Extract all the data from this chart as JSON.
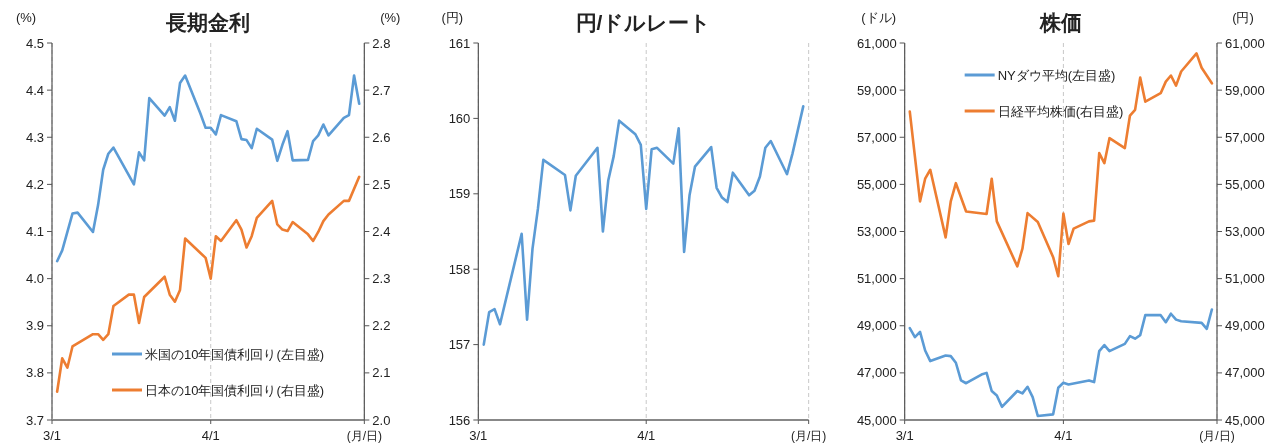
{
  "chart_data": [
    {
      "type": "line",
      "title": "長期金利",
      "xlabel": "(月/日)",
      "ylabel": "(%)",
      "y2label": "(%)",
      "grid": "x",
      "legend": "bottom",
      "xlim": [
        "--03-01",
        "--05-01"
      ],
      "xticks": [
        {
          "value": "--03-01",
          "label": "3/1"
        },
        {
          "value": "--04-01",
          "label": "4/1"
        },
        {
          "value": "--05-01",
          "label": null
        }
      ],
      "ylim": [
        3.7,
        4.5
      ],
      "yticks": [
        3.7,
        3.8,
        3.9,
        {
          "value": 4,
          "label": "4.0"
        },
        4.1,
        4.2,
        4.3,
        4.4,
        4.5
      ],
      "y2lim": [
        2.0,
        2.8
      ],
      "y2ticks": [
        {
          "value": 2,
          "label": "2.0"
        },
        2.1,
        2.2,
        2.3,
        2.4,
        2.5,
        2.6,
        2.7,
        2.8
      ],
      "series": [
        {
          "name": "米国の10年国債利回り(左目盛)",
          "color": "#5b9bd5",
          "x": [
            "--03-02",
            "--03-03",
            "--03-05",
            "--03-06",
            "--03-09",
            "--03-10",
            "--03-11",
            "--03-12",
            "--03-13",
            "--03-17",
            "--03-18",
            "--03-19",
            "--03-20",
            "--03-23",
            "--03-24",
            "--03-25",
            "--03-26",
            "--03-27",
            "--03-30",
            "--03-31",
            "--04-01",
            "--04-02",
            "--04-03",
            "--04-06",
            "--04-07",
            "--04-08",
            "--04-09",
            "--04-10",
            "--04-13",
            "--04-14",
            "--04-15",
            "--04-16",
            "--04-17",
            "--04-20",
            "--04-21",
            "--04-22",
            "--04-23",
            "--04-24",
            "--04-27",
            "--04-28",
            "--04-29",
            "--04-30"
          ],
          "values": [
            4.037,
            4.06,
            4.138,
            4.14,
            4.099,
            4.156,
            4.231,
            4.265,
            4.278,
            4.2,
            4.268,
            4.251,
            4.383,
            4.346,
            4.364,
            4.335,
            4.415,
            4.431,
            4.35,
            4.32,
            4.32,
            4.306,
            4.347,
            4.334,
            4.296,
            4.294,
            4.277,
            4.318,
            4.295,
            4.25,
            4.284,
            4.313,
            4.251,
            4.252,
            4.292,
            4.304,
            4.327,
            4.304,
            4.341,
            4.347,
            4.431,
            4.371
          ]
        },
        {
          "name": "日本の10年国債利回り(右目盛)",
          "color": "#ed7d31",
          "axis": "y2",
          "x": [
            "--03-02",
            "--03-03",
            "--03-04",
            "--03-05",
            "--03-09",
            "--03-10",
            "--03-11",
            "--03-12",
            "--03-13",
            "--03-16",
            "--03-17",
            "--03-18",
            "--03-19",
            "--03-23",
            "--03-24",
            "--03-25",
            "--03-26",
            "--03-27",
            "--03-31",
            "--04-01",
            "--04-02",
            "--04-03",
            "--04-06",
            "--04-07",
            "--04-08",
            "--04-09",
            "--04-10",
            "--04-13",
            "--04-14",
            "--04-15",
            "--04-16",
            "--04-17",
            "--04-20",
            "--04-21",
            "--04-22",
            "--04-23",
            "--04-24",
            "--04-27",
            "--04-28",
            "--04-30"
          ],
          "values": [
            2.06,
            2.131,
            2.111,
            2.156,
            2.182,
            2.182,
            2.17,
            2.182,
            2.242,
            2.266,
            2.266,
            2.206,
            2.261,
            2.304,
            2.266,
            2.251,
            2.276,
            2.385,
            2.344,
            2.3,
            2.39,
            2.38,
            2.424,
            2.404,
            2.366,
            2.39,
            2.429,
            2.465,
            2.415,
            2.404,
            2.401,
            2.42,
            2.394,
            2.38,
            2.399,
            2.422,
            2.436,
            2.465,
            2.465,
            2.516
          ]
        }
      ]
    },
    {
      "type": "line",
      "title": "円/ドルレート",
      "xlabel": "(月/日)",
      "ylabel": "(円)",
      "grid": "x",
      "legend": false,
      "xlim": [
        "--03-01",
        "--05-01"
      ],
      "xticks": [
        {
          "value": "--03-01",
          "label": "3/1"
        },
        {
          "value": "--04-01",
          "label": "4/1"
        },
        {
          "value": "--05-01",
          "label": null
        }
      ],
      "ylim": [
        156,
        161
      ],
      "yticks": [
        156,
        157,
        158,
        159,
        160,
        161
      ],
      "x": [
        "--03-02",
        "--03-03",
        "--03-04",
        "--03-05",
        "--03-09",
        "--03-10",
        "--03-11",
        "--03-12",
        "--03-13",
        "--03-17",
        "--03-18",
        "--03-19",
        "--03-23",
        "--03-24",
        "--03-25",
        "--03-26",
        "--03-27",
        "--03-30",
        "--03-31",
        "--04-01",
        "--04-02",
        "--04-03",
        "--04-06",
        "--04-07",
        "--04-08",
        "--04-09",
        "--04-10",
        "--04-13",
        "--04-14",
        "--04-15",
        "--04-16",
        "--04-17",
        "--04-20",
        "--04-21",
        "--04-22",
        "--04-23",
        "--04-24",
        "--04-27",
        "--04-28",
        "--04-30"
      ],
      "series": [
        {
          "color": "#5b9bd5",
          "values": [
            157.0,
            157.43,
            157.47,
            157.27,
            158.47,
            157.33,
            158.27,
            158.8,
            159.45,
            159.25,
            158.78,
            159.24,
            159.61,
            158.5,
            159.18,
            159.5,
            159.97,
            159.79,
            159.65,
            158.8,
            159.59,
            159.61,
            159.4,
            159.87,
            158.23,
            158.98,
            159.36,
            159.62,
            159.08,
            158.95,
            158.89,
            159.28,
            158.98,
            159.04,
            159.23,
            159.61,
            159.7,
            159.26,
            159.53,
            160.16
          ]
        }
      ]
    },
    {
      "type": "line",
      "title": "株価",
      "xlabel": "(月/日)",
      "ylabel": "(ドル)",
      "y2label": "(円)",
      "grid": "x",
      "legend": "top",
      "xlim": [
        "--03-01",
        "--05-01"
      ],
      "xticks": [
        {
          "value": "--03-01",
          "label": "3/1"
        },
        {
          "value": "--04-01",
          "label": "4/1"
        },
        {
          "value": "--05-01",
          "label": null
        }
      ],
      "ylim": [
        45000,
        61000
      ],
      "yticks": [
        {
          "value": 45000,
          "label": "45,000"
        },
        {
          "value": 47000,
          "label": "47,000"
        },
        {
          "value": 49000,
          "label": "49,000"
        },
        {
          "value": 51000,
          "label": "51,000"
        },
        {
          "value": 53000,
          "label": "53,000"
        },
        {
          "value": 55000,
          "label": "55,000"
        },
        {
          "value": 57000,
          "label": "57,000"
        },
        {
          "value": 59000,
          "label": "59,000"
        },
        {
          "value": 61000,
          "label": "61,000"
        }
      ],
      "y2lim": [
        45000,
        61000
      ],
      "y2ticks": [
        {
          "value": 45000,
          "label": "45,000"
        },
        {
          "value": 47000,
          "label": "47,000"
        },
        {
          "value": 49000,
          "label": "49,000"
        },
        {
          "value": 51000,
          "label": "51,000"
        },
        {
          "value": 53000,
          "label": "53,000"
        },
        {
          "value": 55000,
          "label": "55,000"
        },
        {
          "value": 57000,
          "label": "57,000"
        },
        {
          "value": 59000,
          "label": "59,000"
        },
        {
          "value": 61000,
          "label": "61,000"
        }
      ],
      "series": [
        {
          "name": "NYダウ平均(左目盛)",
          "color": "#5b9bd5",
          "x": [
            "--03-02",
            "--03-03",
            "--03-04",
            "--03-05",
            "--03-06",
            "--03-09",
            "--03-10",
            "--03-11",
            "--03-12",
            "--03-13",
            "--03-16",
            "--03-17",
            "--03-18",
            "--03-19",
            "--03-20",
            "--03-23",
            "--03-24",
            "--03-25",
            "--03-26",
            "--03-27",
            "--03-30",
            "--03-31",
            "--04-01",
            "--04-02",
            "--04-06",
            "--04-07",
            "--04-08",
            "--04-09",
            "--04-10",
            "--04-13",
            "--04-14",
            "--04-15",
            "--04-16",
            "--04-17",
            "--04-20",
            "--04-21",
            "--04-22",
            "--04-23",
            "--04-24",
            "--04-28",
            "--04-29",
            "--04-30"
          ],
          "values": [
            48900,
            48520,
            48740,
            47950,
            47500,
            47740,
            47710,
            47430,
            46680,
            46560,
            46930,
            47000,
            46230,
            46040,
            45560,
            46230,
            46130,
            46410,
            45970,
            45170,
            45240,
            46370,
            46580,
            46510,
            46680,
            46610,
            47920,
            48180,
            47920,
            48230,
            48560,
            48450,
            48600,
            49450,
            49450,
            49150,
            49510,
            49260,
            49190,
            49120,
            48870,
            49690
          ]
        },
        {
          "name": "日経平均株価(右目盛)",
          "color": "#ed7d31",
          "axis": "y2",
          "x": [
            "--03-02",
            "--03-04",
            "--03-05",
            "--03-06",
            "--03-09",
            "--03-10",
            "--03-11",
            "--03-13",
            "--03-17",
            "--03-18",
            "--03-19",
            "--03-23",
            "--03-24",
            "--03-25",
            "--03-27",
            "--03-30",
            "--03-31",
            "--04-01",
            "--04-02",
            "--04-03",
            "--04-06",
            "--04-07",
            "--04-08",
            "--04-09",
            "--04-10",
            "--04-13",
            "--04-14",
            "--04-15",
            "--04-16",
            "--04-17",
            "--04-20",
            "--04-21",
            "--04-22",
            "--04-23",
            "--04-24",
            "--04-27",
            "--04-28",
            "--04-30"
          ],
          "values": [
            58090,
            54280,
            55240,
            55620,
            52750,
            54280,
            55050,
            53850,
            53740,
            55240,
            53430,
            51520,
            52270,
            53780,
            53400,
            51910,
            51100,
            53760,
            52470,
            53120,
            53430,
            53460,
            56330,
            55900,
            56960,
            56540,
            57920,
            58160,
            59530,
            58510,
            58870,
            59360,
            59620,
            59190,
            59790,
            60560,
            59950,
            59290
          ]
        }
      ]
    }
  ]
}
